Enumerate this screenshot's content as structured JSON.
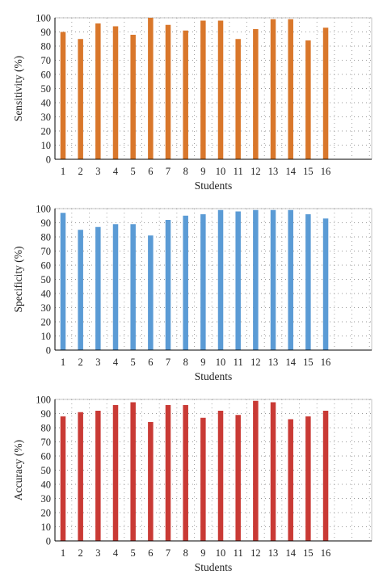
{
  "chart_data": [
    {
      "type": "bar",
      "color": "#D9772B",
      "categories": [
        "1",
        "2",
        "3",
        "4",
        "5",
        "6",
        "7",
        "8",
        "9",
        "10",
        "11",
        "12",
        "13",
        "14",
        "15",
        "16"
      ],
      "series": [
        {
          "values": [
            90,
            85,
            96,
            94,
            88,
            100,
            95,
            91,
            98,
            98,
            85,
            92,
            99,
            99,
            84,
            93
          ]
        }
      ],
      "xlabel": "Students",
      "ylabel": "Sensitivity (%)",
      "ylim": [
        0,
        100
      ],
      "yticks": [
        0,
        10,
        20,
        30,
        40,
        50,
        60,
        70,
        80,
        90,
        100
      ],
      "grid": true
    },
    {
      "type": "bar",
      "color": "#5B9BD5",
      "categories": [
        "1",
        "2",
        "3",
        "4",
        "5",
        "6",
        "7",
        "8",
        "9",
        "10",
        "11",
        "12",
        "13",
        "14",
        "15",
        "16"
      ],
      "series": [
        {
          "values": [
            97,
            85,
            87,
            89,
            89,
            81,
            92,
            95,
            96,
            99,
            98,
            99,
            99,
            99,
            96,
            93
          ]
        }
      ],
      "xlabel": "Students",
      "ylabel": "Specificity (%)",
      "ylim": [
        0,
        100
      ],
      "yticks": [
        0,
        10,
        20,
        30,
        40,
        50,
        60,
        70,
        80,
        90,
        100
      ],
      "grid": true
    },
    {
      "type": "bar",
      "color": "#C93A35",
      "categories": [
        "1",
        "2",
        "3",
        "4",
        "5",
        "6",
        "7",
        "8",
        "9",
        "10",
        "11",
        "12",
        "13",
        "14",
        "15",
        "16"
      ],
      "series": [
        {
          "values": [
            88,
            91,
            92,
            96,
            98,
            84,
            96,
            96,
            87,
            92,
            89,
            99,
            98,
            86,
            88,
            92
          ]
        }
      ],
      "xlabel": "Students",
      "ylabel": "Accuracy (%)",
      "ylim": [
        0,
        100
      ],
      "yticks": [
        0,
        10,
        20,
        30,
        40,
        50,
        60,
        70,
        80,
        90,
        100
      ],
      "grid": true
    }
  ]
}
